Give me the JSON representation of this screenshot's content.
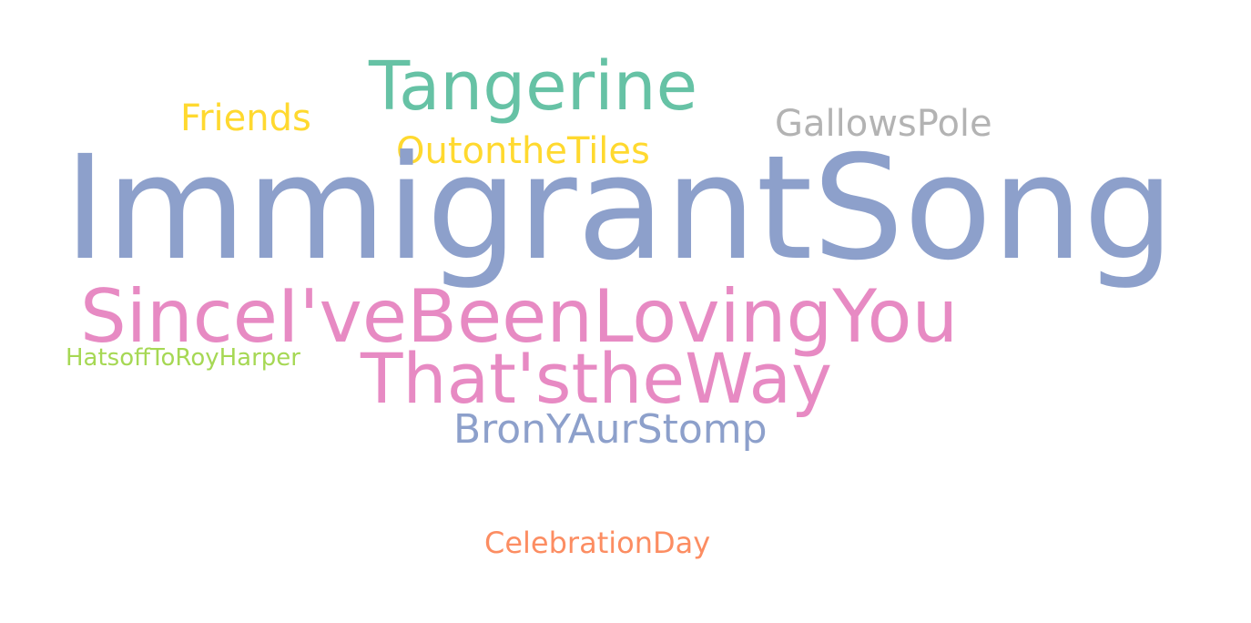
{
  "words": [
    {
      "key": "tangerine",
      "text": "Tangerine",
      "color": "#66c2a5"
    },
    {
      "key": "friends",
      "text": "Friends",
      "color": "#ffd92f"
    },
    {
      "key": "gallows",
      "text": "GallowsPole",
      "color": "#b3b3b3"
    },
    {
      "key": "outon",
      "text": "OutontheTiles",
      "color": "#ffd92f"
    },
    {
      "key": "immigrant",
      "text": "ImmigrantSong",
      "color": "#8da0cb"
    },
    {
      "key": "since",
      "text": "SinceI'veBeenLovingYou",
      "color": "#e78ac3"
    },
    {
      "key": "hats",
      "text": "HatsoffToRoyHarper",
      "color": "#a6d854"
    },
    {
      "key": "thats",
      "text": "That'stheWay",
      "color": "#e78ac3"
    },
    {
      "key": "bron",
      "text": "BronYAurStomp",
      "color": "#8da0cb"
    },
    {
      "key": "celeb",
      "text": "CelebrationDay",
      "color": "#fc8d62"
    }
  ]
}
